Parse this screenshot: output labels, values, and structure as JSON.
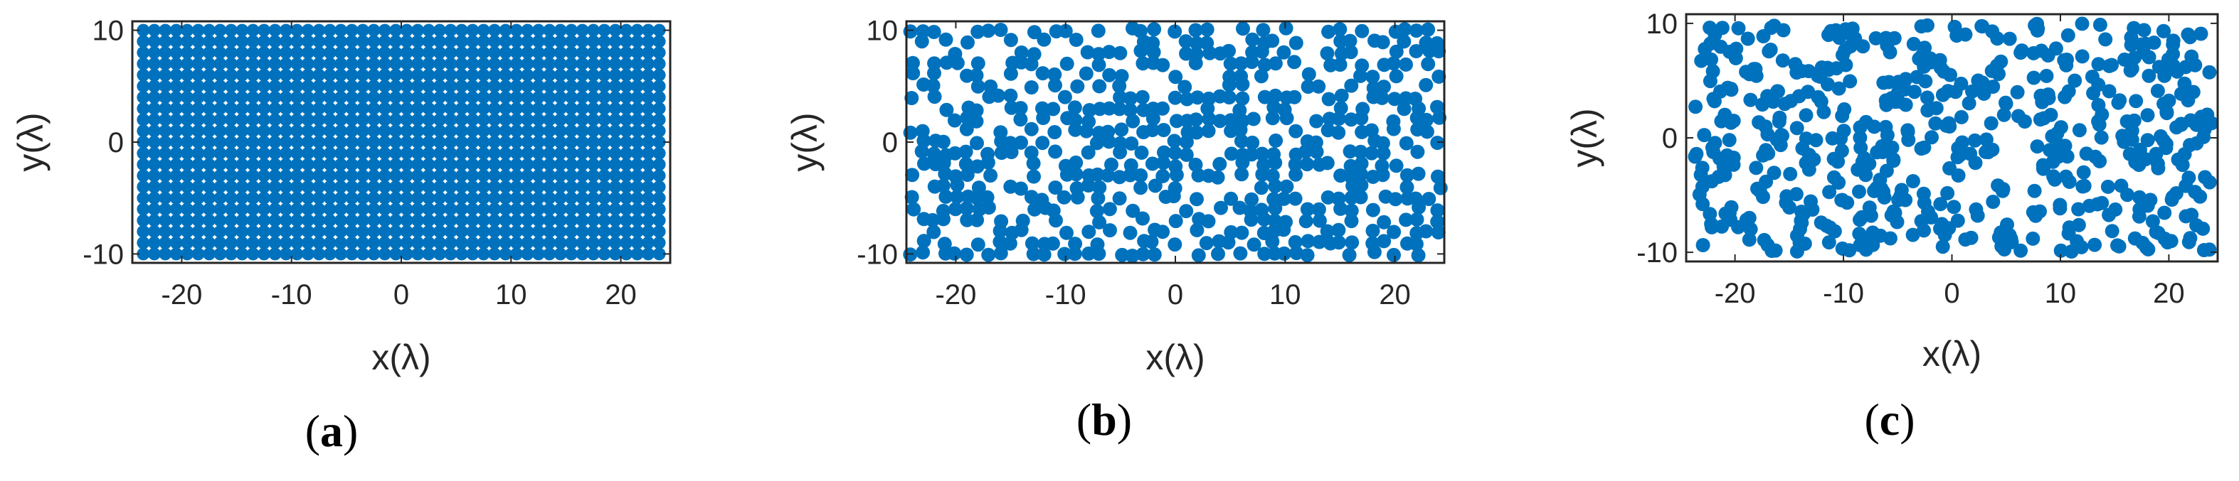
{
  "chart_data": [
    {
      "type": "scatter",
      "caption": "a",
      "pattern": "uniform-grid",
      "xlabel": "x(λ)",
      "ylabel": "y(λ)",
      "xlim": [
        -24.5,
        24.5
      ],
      "ylim": [
        -10.8,
        10.8
      ],
      "xticks": [
        -20,
        -10,
        0,
        10,
        20
      ],
      "yticks": [
        -10,
        0,
        10
      ],
      "grid": false,
      "marker_color": "#0072BD",
      "points": {
        "x_start": -23.5,
        "x_step": 1.0,
        "x_count": 48,
        "y_start": -10.0,
        "y_step": 1.0,
        "y_count": 21
      }
    },
    {
      "type": "scatter",
      "caption": "b",
      "pattern": "sparse-diagonal-lattice",
      "xlabel": "x(λ)",
      "ylabel": "y(λ)",
      "xlim": [
        -24.5,
        24.5
      ],
      "ylim": [
        -10.8,
        10.8
      ],
      "xticks": [
        -20,
        -10,
        0,
        10,
        20
      ],
      "yticks": [
        -10,
        0,
        10
      ],
      "grid": false,
      "marker_color": "#0072BD",
      "points": {
        "x_start": -24,
        "x_step": 1.0,
        "x_count": 49,
        "y_start": -10,
        "y_step": 1.0,
        "y_count": 21,
        "approx_count": 540
      }
    },
    {
      "type": "scatter",
      "caption": "c",
      "pattern": "random",
      "xlabel": "x(λ)",
      "ylabel": "y(λ)",
      "xlim": [
        -24.5,
        24.5
      ],
      "ylim": [
        -10.8,
        10.8
      ],
      "xticks": [
        -20,
        -10,
        0,
        10,
        20
      ],
      "yticks": [
        -10,
        0,
        10
      ],
      "grid": false,
      "marker_color": "#0072BD",
      "points": {
        "x_range": [
          -24,
          24
        ],
        "y_range": [
          -10,
          10
        ],
        "approx_count": 560
      }
    }
  ]
}
